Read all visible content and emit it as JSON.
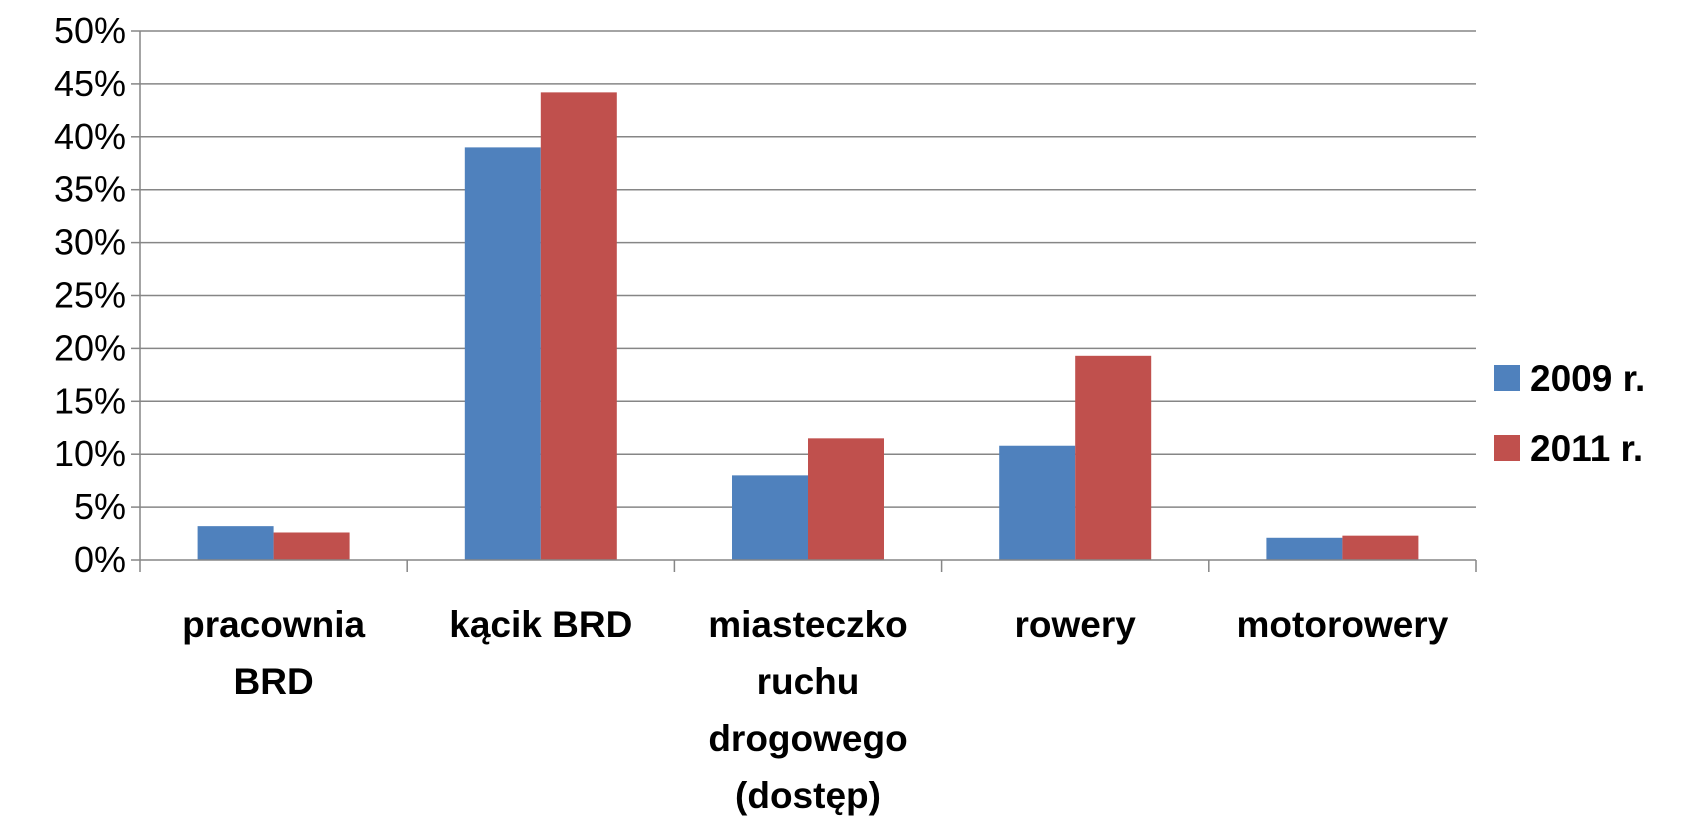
{
  "chart_data": {
    "type": "bar",
    "categories": [
      [
        "pracownia",
        "BRD"
      ],
      [
        "kącik BRD"
      ],
      [
        "miasteczko",
        "ruchu",
        "drogowego",
        "(dostęp)"
      ],
      [
        "rowery"
      ],
      [
        "motorowery"
      ]
    ],
    "series": [
      {
        "name": "2009 r.",
        "color": "#4F81BD",
        "values": [
          3.2,
          39.0,
          8.0,
          10.8,
          2.1
        ]
      },
      {
        "name": "2011 r.",
        "color": "#C0504D",
        "values": [
          2.6,
          44.2,
          11.5,
          19.3,
          2.3
        ]
      }
    ],
    "ylim": [
      0,
      50
    ],
    "yticks": [
      0,
      5,
      10,
      15,
      20,
      25,
      30,
      35,
      40,
      45,
      50
    ],
    "ytick_labels": [
      "0%",
      "5%",
      "10%",
      "15%",
      "20%",
      "25%",
      "30%",
      "35%",
      "40%",
      "45%",
      "50%"
    ],
    "grid": true,
    "legend_position": "right",
    "title": "",
    "xlabel": "",
    "ylabel": ""
  }
}
